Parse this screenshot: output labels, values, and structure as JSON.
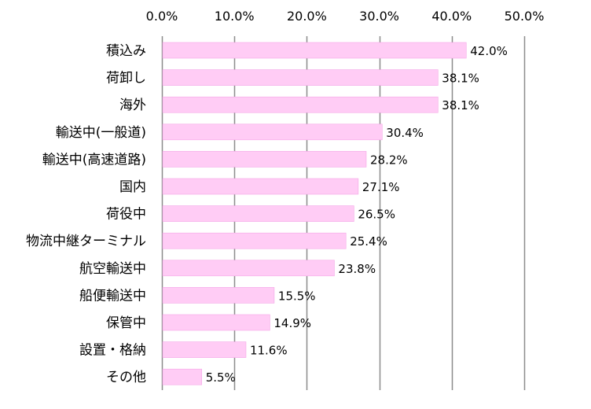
{
  "chart_data": {
    "type": "bar",
    "orientation": "horizontal",
    "categories": [
      "積込み",
      "荷卸し",
      "海外",
      "輸送中(一般道)",
      "輸送中(高速道路)",
      "国内",
      "荷役中",
      "物流中継ターミナル",
      "航空輸送中",
      "船便輸送中",
      "保管中",
      "設置・格納",
      "その他"
    ],
    "values": [
      42.0,
      38.1,
      38.1,
      30.4,
      28.2,
      27.1,
      26.5,
      25.4,
      23.8,
      15.5,
      14.9,
      11.6,
      5.5
    ],
    "data_labels": [
      "42.0%",
      "38.1%",
      "38.1%",
      "30.4%",
      "28.2%",
      "27.1%",
      "26.5%",
      "25.4%",
      "23.8%",
      "15.5%",
      "14.9%",
      "11.6%",
      "5.5%"
    ],
    "xlim": [
      0,
      50
    ],
    "x_ticks": [
      0,
      10,
      20,
      30,
      40,
      50
    ],
    "x_tick_labels": [
      "0.0%",
      "10.0%",
      "20.0%",
      "30.0%",
      "40.0%",
      "50.0%"
    ],
    "x_axis_position": "top",
    "grid": true,
    "legend": "none",
    "bar_color": "#ffccf5",
    "bar_edge_color": "#f4a6e6",
    "grid_color": "#8c8c8c",
    "title": "",
    "xlabel": "",
    "ylabel": ""
  }
}
